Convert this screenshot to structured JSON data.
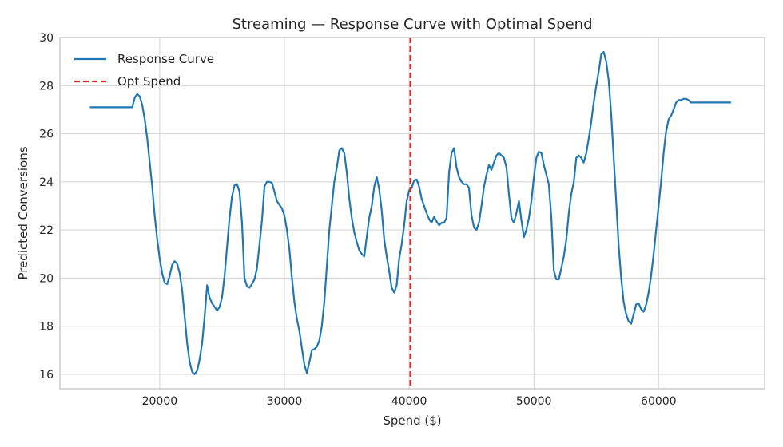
{
  "chart_data": {
    "type": "line",
    "title": "Streaming — Response Curve with Optimal Spend",
    "xlabel": "Spend ($)",
    "ylabel": "Predicted Conversions",
    "xlim": [
      12000,
      68500
    ],
    "ylim": [
      15.4,
      30
    ],
    "x_ticks": [
      20000,
      30000,
      40000,
      50000,
      60000
    ],
    "y_ticks": [
      16,
      18,
      20,
      22,
      24,
      26,
      28,
      30
    ],
    "grid": true,
    "legend_position": "top-left",
    "colors": {
      "curve": "#1f77b4",
      "opt": "#d62728"
    },
    "series": [
      {
        "name": "Response Curve",
        "style": "solid",
        "points": [
          [
            14400,
            27.1
          ],
          [
            16000,
            27.1
          ],
          [
            17200,
            27.1
          ],
          [
            17800,
            27.1
          ],
          [
            18000,
            27.5
          ],
          [
            18200,
            27.65
          ],
          [
            18400,
            27.55
          ],
          [
            18600,
            27.2
          ],
          [
            18800,
            26.6
          ],
          [
            19000,
            25.8
          ],
          [
            19200,
            24.8
          ],
          [
            19400,
            23.8
          ],
          [
            19600,
            22.6
          ],
          [
            19800,
            21.6
          ],
          [
            20000,
            20.8
          ],
          [
            20200,
            20.2
          ],
          [
            20400,
            19.8
          ],
          [
            20600,
            19.75
          ],
          [
            20800,
            20.1
          ],
          [
            21000,
            20.55
          ],
          [
            21200,
            20.7
          ],
          [
            21400,
            20.6
          ],
          [
            21600,
            20.2
          ],
          [
            21800,
            19.5
          ],
          [
            22000,
            18.4
          ],
          [
            22200,
            17.3
          ],
          [
            22400,
            16.5
          ],
          [
            22600,
            16.1
          ],
          [
            22800,
            16.0
          ],
          [
            23000,
            16.15
          ],
          [
            23200,
            16.6
          ],
          [
            23400,
            17.3
          ],
          [
            23600,
            18.4
          ],
          [
            23800,
            19.7
          ],
          [
            24000,
            19.2
          ],
          [
            24200,
            18.95
          ],
          [
            24400,
            18.8
          ],
          [
            24600,
            18.65
          ],
          [
            24800,
            18.8
          ],
          [
            25000,
            19.2
          ],
          [
            25200,
            20.1
          ],
          [
            25400,
            21.3
          ],
          [
            25600,
            22.5
          ],
          [
            25800,
            23.4
          ],
          [
            26000,
            23.85
          ],
          [
            26200,
            23.9
          ],
          [
            26400,
            23.6
          ],
          [
            26600,
            22.3
          ],
          [
            26800,
            20.0
          ],
          [
            27000,
            19.65
          ],
          [
            27200,
            19.6
          ],
          [
            27400,
            19.75
          ],
          [
            27600,
            19.95
          ],
          [
            27800,
            20.4
          ],
          [
            28000,
            21.4
          ],
          [
            28200,
            22.4
          ],
          [
            28400,
            23.8
          ],
          [
            28600,
            24.0
          ],
          [
            28800,
            24.0
          ],
          [
            29000,
            23.95
          ],
          [
            29200,
            23.6
          ],
          [
            29400,
            23.2
          ],
          [
            29600,
            23.05
          ],
          [
            29800,
            22.9
          ],
          [
            30000,
            22.6
          ],
          [
            30200,
            22.0
          ],
          [
            30400,
            21.2
          ],
          [
            30600,
            20.0
          ],
          [
            30800,
            19.0
          ],
          [
            31000,
            18.3
          ],
          [
            31200,
            17.8
          ],
          [
            31400,
            17.1
          ],
          [
            31600,
            16.4
          ],
          [
            31800,
            16.05
          ],
          [
            32000,
            16.5
          ],
          [
            32200,
            17.0
          ],
          [
            32400,
            17.05
          ],
          [
            32600,
            17.15
          ],
          [
            32800,
            17.4
          ],
          [
            33000,
            18.0
          ],
          [
            33200,
            19.0
          ],
          [
            33400,
            20.5
          ],
          [
            33600,
            22.0
          ],
          [
            33800,
            23.0
          ],
          [
            34000,
            24.0
          ],
          [
            34200,
            24.6
          ],
          [
            34400,
            25.3
          ],
          [
            34600,
            25.4
          ],
          [
            34800,
            25.2
          ],
          [
            35000,
            24.4
          ],
          [
            35200,
            23.3
          ],
          [
            35400,
            22.5
          ],
          [
            35600,
            21.9
          ],
          [
            35800,
            21.5
          ],
          [
            36000,
            21.15
          ],
          [
            36200,
            21.0
          ],
          [
            36400,
            20.9
          ],
          [
            36600,
            21.7
          ],
          [
            36800,
            22.5
          ],
          [
            37000,
            23.0
          ],
          [
            37200,
            23.8
          ],
          [
            37400,
            24.2
          ],
          [
            37600,
            23.7
          ],
          [
            37800,
            22.8
          ],
          [
            38000,
            21.6
          ],
          [
            38200,
            20.9
          ],
          [
            38400,
            20.3
          ],
          [
            38600,
            19.6
          ],
          [
            38800,
            19.4
          ],
          [
            39000,
            19.7
          ],
          [
            39200,
            20.8
          ],
          [
            39400,
            21.4
          ],
          [
            39600,
            22.2
          ],
          [
            39800,
            23.2
          ],
          [
            40000,
            23.65
          ],
          [
            40200,
            23.75
          ],
          [
            40400,
            24.05
          ],
          [
            40600,
            24.1
          ],
          [
            40800,
            23.8
          ],
          [
            41000,
            23.3
          ],
          [
            41200,
            23.0
          ],
          [
            41400,
            22.7
          ],
          [
            41600,
            22.45
          ],
          [
            41800,
            22.3
          ],
          [
            42000,
            22.55
          ],
          [
            42200,
            22.35
          ],
          [
            42400,
            22.2
          ],
          [
            42600,
            22.3
          ],
          [
            42800,
            22.3
          ],
          [
            43000,
            22.5
          ],
          [
            43200,
            24.4
          ],
          [
            43400,
            25.2
          ],
          [
            43600,
            25.4
          ],
          [
            43800,
            24.6
          ],
          [
            44000,
            24.2
          ],
          [
            44200,
            24.0
          ],
          [
            44400,
            23.9
          ],
          [
            44600,
            23.9
          ],
          [
            44800,
            23.75
          ],
          [
            45000,
            22.6
          ],
          [
            45200,
            22.1
          ],
          [
            45400,
            22.0
          ],
          [
            45600,
            22.3
          ],
          [
            45800,
            23.0
          ],
          [
            46000,
            23.8
          ],
          [
            46200,
            24.3
          ],
          [
            46400,
            24.7
          ],
          [
            46600,
            24.5
          ],
          [
            46800,
            24.8
          ],
          [
            47000,
            25.1
          ],
          [
            47200,
            25.2
          ],
          [
            47400,
            25.1
          ],
          [
            47600,
            25.0
          ],
          [
            47800,
            24.6
          ],
          [
            48000,
            23.5
          ],
          [
            48200,
            22.5
          ],
          [
            48400,
            22.3
          ],
          [
            48600,
            22.7
          ],
          [
            48800,
            23.2
          ],
          [
            49000,
            22.4
          ],
          [
            49200,
            21.7
          ],
          [
            49400,
            22.0
          ],
          [
            49600,
            22.5
          ],
          [
            49800,
            23.2
          ],
          [
            50000,
            24.2
          ],
          [
            50200,
            25.0
          ],
          [
            50400,
            25.25
          ],
          [
            50600,
            25.2
          ],
          [
            50800,
            24.7
          ],
          [
            51000,
            24.3
          ],
          [
            51200,
            23.9
          ],
          [
            51400,
            22.5
          ],
          [
            51600,
            20.3
          ],
          [
            51800,
            19.95
          ],
          [
            52000,
            19.95
          ],
          [
            52200,
            20.4
          ],
          [
            52400,
            20.9
          ],
          [
            52600,
            21.6
          ],
          [
            52800,
            22.7
          ],
          [
            53000,
            23.5
          ],
          [
            53200,
            24.0
          ],
          [
            53400,
            25.0
          ],
          [
            53600,
            25.1
          ],
          [
            53800,
            25.0
          ],
          [
            54000,
            24.8
          ],
          [
            54200,
            25.2
          ],
          [
            54400,
            25.8
          ],
          [
            54600,
            26.5
          ],
          [
            54800,
            27.3
          ],
          [
            55000,
            28.0
          ],
          [
            55200,
            28.6
          ],
          [
            55400,
            29.3
          ],
          [
            55600,
            29.4
          ],
          [
            55800,
            29.0
          ],
          [
            56000,
            28.2
          ],
          [
            56200,
            26.8
          ],
          [
            56400,
            25.0
          ],
          [
            56600,
            23.2
          ],
          [
            56800,
            21.3
          ],
          [
            57000,
            20.0
          ],
          [
            57200,
            19.0
          ],
          [
            57400,
            18.5
          ],
          [
            57600,
            18.2
          ],
          [
            57800,
            18.1
          ],
          [
            58000,
            18.5
          ],
          [
            58200,
            18.9
          ],
          [
            58400,
            18.95
          ],
          [
            58600,
            18.7
          ],
          [
            58800,
            18.6
          ],
          [
            59000,
            18.9
          ],
          [
            59200,
            19.4
          ],
          [
            59400,
            20.1
          ],
          [
            59600,
            21.0
          ],
          [
            59800,
            22.0
          ],
          [
            60000,
            23.0
          ],
          [
            60200,
            24.0
          ],
          [
            60400,
            25.2
          ],
          [
            60600,
            26.1
          ],
          [
            60800,
            26.6
          ],
          [
            61000,
            26.75
          ],
          [
            61200,
            27.0
          ],
          [
            61400,
            27.3
          ],
          [
            61600,
            27.4
          ],
          [
            61800,
            27.4
          ],
          [
            62000,
            27.45
          ],
          [
            62200,
            27.45
          ],
          [
            62400,
            27.4
          ],
          [
            62600,
            27.3
          ],
          [
            62800,
            27.3
          ],
          [
            63000,
            27.3
          ],
          [
            64000,
            27.3
          ],
          [
            65800,
            27.3
          ]
        ]
      },
      {
        "name": "Opt Spend",
        "style": "dashed",
        "x": 40100
      }
    ]
  }
}
